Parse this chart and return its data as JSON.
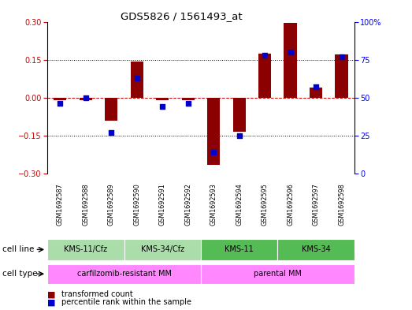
{
  "title": "GDS5826 / 1561493_at",
  "samples": [
    "GSM1692587",
    "GSM1692588",
    "GSM1692589",
    "GSM1692590",
    "GSM1692591",
    "GSM1692592",
    "GSM1692593",
    "GSM1692594",
    "GSM1692595",
    "GSM1692596",
    "GSM1692597",
    "GSM1692598"
  ],
  "transformed_count": [
    -0.01,
    -0.01,
    -0.09,
    0.143,
    -0.01,
    -0.01,
    -0.265,
    -0.135,
    0.175,
    0.295,
    0.04,
    0.17
  ],
  "percentile_rank": [
    46,
    50,
    27,
    63,
    44,
    46,
    14,
    25,
    78,
    80,
    57,
    77
  ],
  "ylim_left": [
    -0.3,
    0.3
  ],
  "ylim_right": [
    0,
    100
  ],
  "yticks_left": [
    -0.3,
    -0.15,
    0,
    0.15,
    0.3
  ],
  "yticks_right": [
    0,
    25,
    50,
    75,
    100
  ],
  "cell_line_groups": [
    {
      "label": "KMS-11/Cfz",
      "start": 0,
      "end": 2,
      "light": true
    },
    {
      "label": "KMS-34/Cfz",
      "start": 3,
      "end": 5,
      "light": true
    },
    {
      "label": "KMS-11",
      "start": 6,
      "end": 8,
      "light": false
    },
    {
      "label": "KMS-34",
      "start": 9,
      "end": 11,
      "light": false
    }
  ],
  "cell_type_groups": [
    {
      "label": "carfilzomib-resistant MM",
      "start": 0,
      "end": 5
    },
    {
      "label": "parental MM",
      "start": 6,
      "end": 11
    }
  ],
  "bar_color": "#8B0000",
  "dot_color": "#0000CC",
  "bar_width": 0.5,
  "dot_size": 25,
  "background_color": "#ffffff",
  "light_green": "#AADDAA",
  "dark_green": "#55BB55",
  "pink_color": "#FF88FF",
  "gray_color": "#C8C8C8",
  "zero_line_color": "#CC0000",
  "dotted_line_color": "#000000"
}
